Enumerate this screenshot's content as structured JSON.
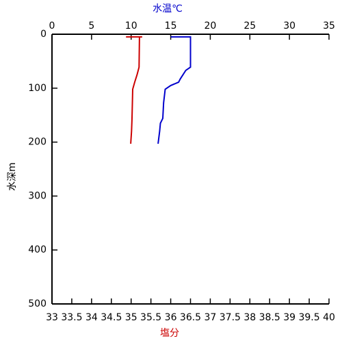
{
  "chart_data": {
    "type": "line",
    "x_label": "塩分",
    "x2_label": "水温℃",
    "y_label": "水深m",
    "xlim": [
      33,
      40
    ],
    "xticks": [
      33,
      33.5,
      34,
      34.5,
      35,
      35.5,
      36,
      36.5,
      37,
      37.5,
      38,
      38.5,
      39,
      39.5,
      40
    ],
    "x2lim": [
      0,
      35
    ],
    "x2ticks": [
      0,
      5,
      10,
      15,
      20,
      25,
      30,
      35
    ],
    "ylim": [
      0,
      500
    ],
    "yticks": [
      0,
      100,
      200,
      300,
      400,
      500
    ],
    "y_inverted": true,
    "x_label_color": "#cc0000",
    "x2_label_color": "#0000cc",
    "series": [
      {
        "color": "#cc0000",
        "axis": "x",
        "values": [
          34.87,
          35.28,
          35.21,
          35.2,
          35.15,
          35.09,
          35.04,
          35.03,
          35.02,
          35.01,
          34.99
        ],
        "depth": [
          5,
          5,
          5,
          61,
          75,
          89,
          102,
          130,
          160,
          180,
          203
        ]
      },
      {
        "color": "#0000cc",
        "axis": "x2",
        "values": [
          15.0,
          17.5,
          17.5,
          16.9,
          16.2,
          16.0,
          15.0,
          14.3,
          14.1,
          14.0,
          13.7,
          13.6,
          13.4
        ],
        "depth": [
          5,
          5,
          61,
          67,
          83,
          89,
          95,
          102,
          127,
          156,
          165,
          180,
          203
        ]
      }
    ]
  }
}
